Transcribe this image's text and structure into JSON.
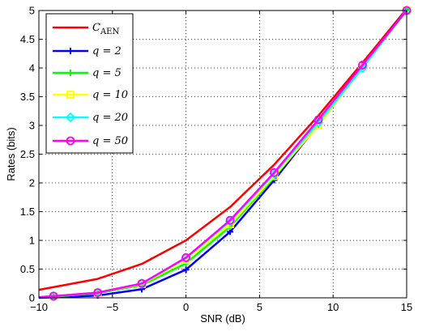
{
  "chart_data": {
    "type": "line",
    "title": "",
    "xlabel": "SNR (dB)",
    "ylabel": "Rates (bits)",
    "xlim": [
      -10,
      15
    ],
    "ylim": [
      0,
      5
    ],
    "xticks": [
      -10,
      -5,
      0,
      5,
      10,
      15
    ],
    "xtick_labels": [
      "−10",
      "−5",
      "0",
      "5",
      "10",
      "15"
    ],
    "yticks": [
      0,
      0.5,
      1,
      1.5,
      2,
      2.5,
      3,
      3.5,
      4,
      4.5,
      5
    ],
    "ytick_labels": [
      "0",
      "0.5",
      "1",
      "1.5",
      "2",
      "2.5",
      "3",
      "3.5",
      "4",
      "4.5",
      "5"
    ],
    "grid": "dotted",
    "legend_position": "top-left",
    "series": [
      {
        "name": "C_AEN",
        "legend_main": "C",
        "legend_sub": "AEN",
        "color": "#ff0000",
        "marker": "none",
        "x": [
          -10,
          -6,
          -3,
          0,
          3,
          6,
          9,
          12,
          15
        ],
        "y": [
          0.14,
          0.33,
          0.59,
          1.0,
          1.58,
          2.32,
          3.17,
          4.09,
          5.03
        ]
      },
      {
        "name": "q = 2",
        "color": "#0000ff",
        "marker": "plus",
        "x": [
          -10,
          -9,
          -6,
          -3,
          0,
          3,
          6,
          9,
          12,
          15
        ],
        "y": [
          0.0,
          0.01,
          0.04,
          0.15,
          0.49,
          1.15,
          2.05,
          3.02,
          4.02,
          5.02
        ]
      },
      {
        "name": "q = 5",
        "color": "#00ff00",
        "marker": "plus",
        "x": [
          -10,
          -9,
          -6,
          -3,
          0,
          3,
          6,
          9,
          12,
          15
        ],
        "y": [
          0.01,
          0.02,
          0.08,
          0.22,
          0.6,
          1.24,
          2.1,
          3.03,
          4.01,
          5.01
        ]
      },
      {
        "name": "q = 10",
        "color": "#ffff00",
        "marker": "square",
        "x": [
          -10,
          -9,
          -6,
          -3,
          0,
          3,
          6,
          9,
          12,
          15
        ],
        "y": [
          0.01,
          0.03,
          0.09,
          0.24,
          0.66,
          1.28,
          2.12,
          3.0,
          4.01,
          5.0
        ]
      },
      {
        "name": "q = 20",
        "color": "#00ffff",
        "marker": "diamond",
        "x": [
          -10,
          -9,
          -6,
          -3,
          0,
          3,
          6,
          9,
          12,
          15
        ],
        "y": [
          0.01,
          0.03,
          0.09,
          0.25,
          0.69,
          1.33,
          2.16,
          3.05,
          4.0,
          5.0
        ]
      },
      {
        "name": "q = 50",
        "color": "#ff00ff",
        "marker": "circle",
        "x": [
          -10,
          -9,
          -6,
          -3,
          0,
          3,
          6,
          9,
          12,
          15
        ],
        "y": [
          0.01,
          0.03,
          0.09,
          0.25,
          0.7,
          1.35,
          2.18,
          3.1,
          4.05,
          5.0
        ]
      }
    ]
  }
}
